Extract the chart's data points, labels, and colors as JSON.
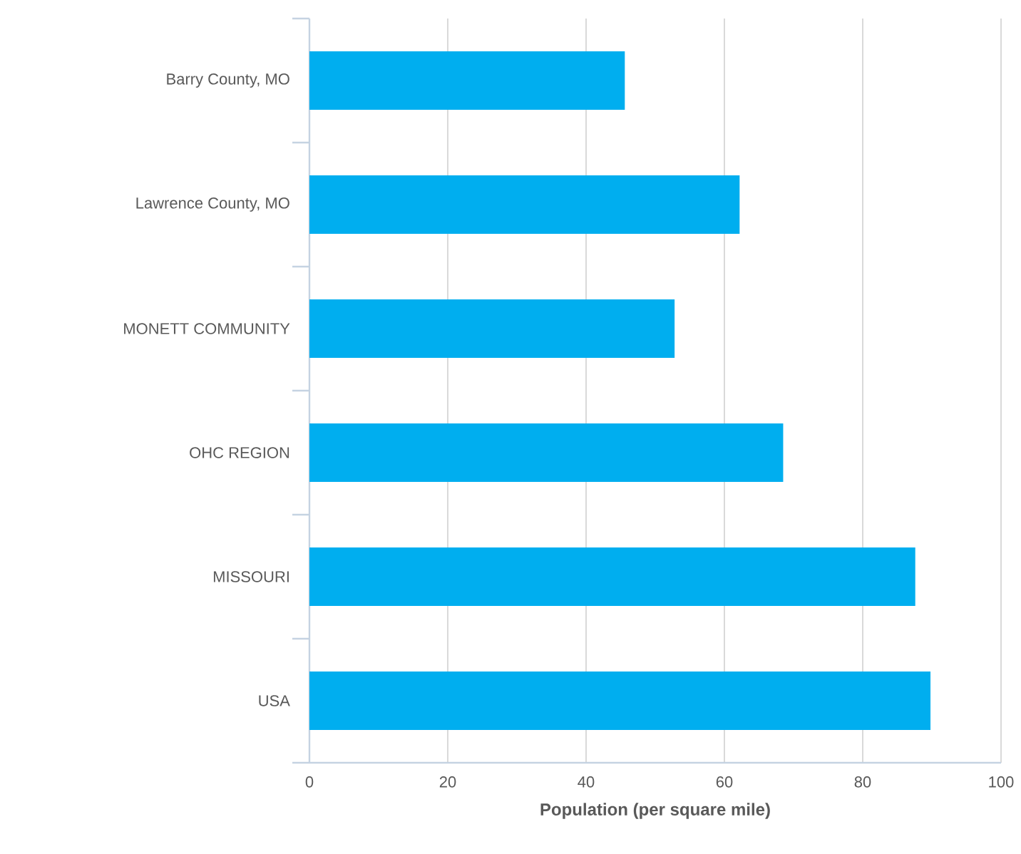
{
  "chart_data": {
    "type": "bar",
    "orientation": "horizontal",
    "xlabel": "Population (per square mile)",
    "categories": [
      "Barry County, MO",
      "Lawrence County, MO",
      "MONETT COMMUNITY",
      "OHC REGION",
      "MISSOURI",
      "USA"
    ],
    "values": [
      45.6,
      62.2,
      52.8,
      68.5,
      87.6,
      89.8
    ],
    "color": "#00aeef",
    "xlim": [
      0,
      100
    ],
    "xticks": [
      0,
      20,
      40,
      60,
      80,
      100
    ],
    "grid": "x"
  }
}
